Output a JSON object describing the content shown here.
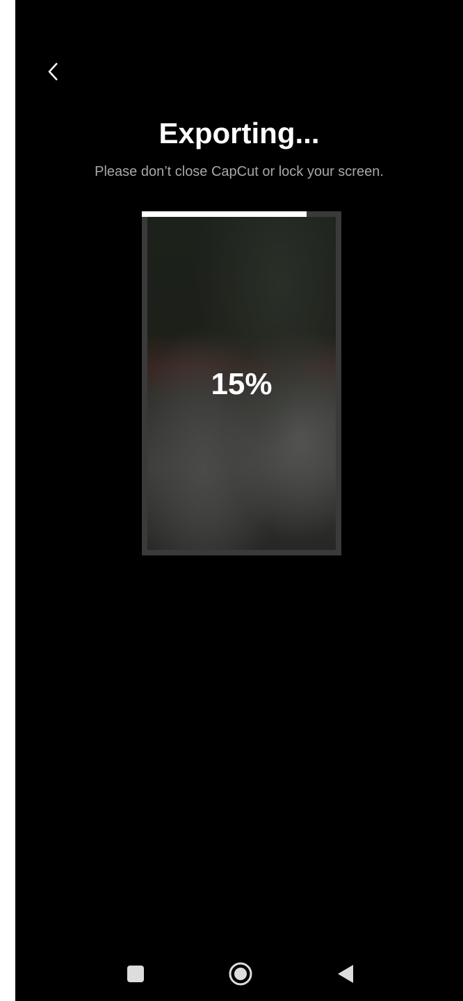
{
  "header": {
    "title": "Exporting...",
    "subtitle": "Please don’t close CapCut or lock your screen."
  },
  "preview": {
    "progress_label": "15%"
  }
}
